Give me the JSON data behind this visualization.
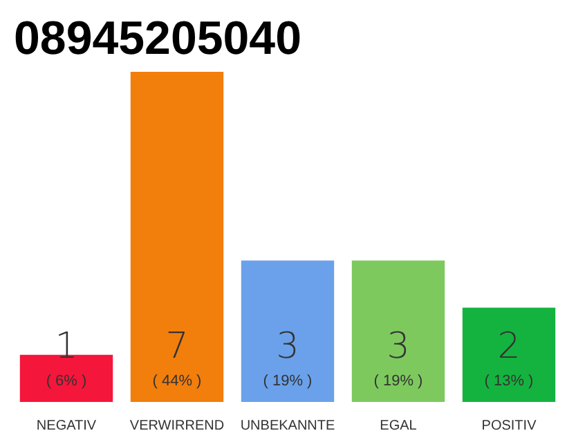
{
  "chart_data": {
    "type": "bar",
    "title": "08945205040",
    "categories": [
      "NEGATIV",
      "VERWIRREND",
      "UNBEKANNTE",
      "EGAL",
      "POSITIV"
    ],
    "values": [
      1,
      7,
      3,
      3,
      2
    ],
    "colors": [
      "#f5163b",
      "#f27e0c",
      "#6aa1ea",
      "#7dc95e",
      "#14b33f"
    ],
    "ylim": [
      0,
      7
    ],
    "tick_labels": "x",
    "data_labels": true,
    "annotations": [
      "( 6% )",
      "( 44% )",
      "( 19% )",
      "( 19% )",
      "( 13% )"
    ]
  }
}
